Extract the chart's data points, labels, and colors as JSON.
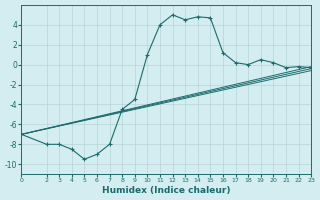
{
  "xlabel": "Humidex (Indice chaleur)",
  "bg_color": "#d4edf0",
  "grid_color": "#b8d4d8",
  "line_color": "#1a6b6b",
  "xlim": [
    0,
    23
  ],
  "ylim": [
    -11,
    6
  ],
  "yticks": [
    -10,
    -8,
    -6,
    -4,
    -2,
    0,
    2,
    4
  ],
  "xticks": [
    0,
    2,
    3,
    4,
    5,
    6,
    7,
    8,
    9,
    10,
    11,
    12,
    13,
    14,
    15,
    16,
    17,
    18,
    19,
    20,
    21,
    22,
    23
  ],
  "curve_x": [
    0,
    2,
    3,
    4,
    5,
    6,
    7,
    8,
    9,
    10,
    11,
    12,
    13,
    14,
    15,
    16,
    17,
    18,
    19,
    20,
    21,
    22,
    23
  ],
  "curve_y": [
    -7.0,
    -8.0,
    -8.0,
    -8.5,
    -9.5,
    -9.0,
    -8.0,
    -4.5,
    -3.5,
    1.0,
    4.0,
    5.0,
    4.5,
    4.8,
    4.7,
    1.2,
    0.2,
    0.0,
    0.5,
    0.2,
    -0.3,
    -0.2,
    -0.3
  ],
  "reg_lines": [
    {
      "x0": 0,
      "y0": -7.0,
      "x1": 23,
      "y1": -0.2
    },
    {
      "x0": 0,
      "y0": -7.0,
      "x1": 23,
      "y1": -0.4
    },
    {
      "x0": 0,
      "y0": -7.0,
      "x1": 23,
      "y1": -0.6
    }
  ]
}
